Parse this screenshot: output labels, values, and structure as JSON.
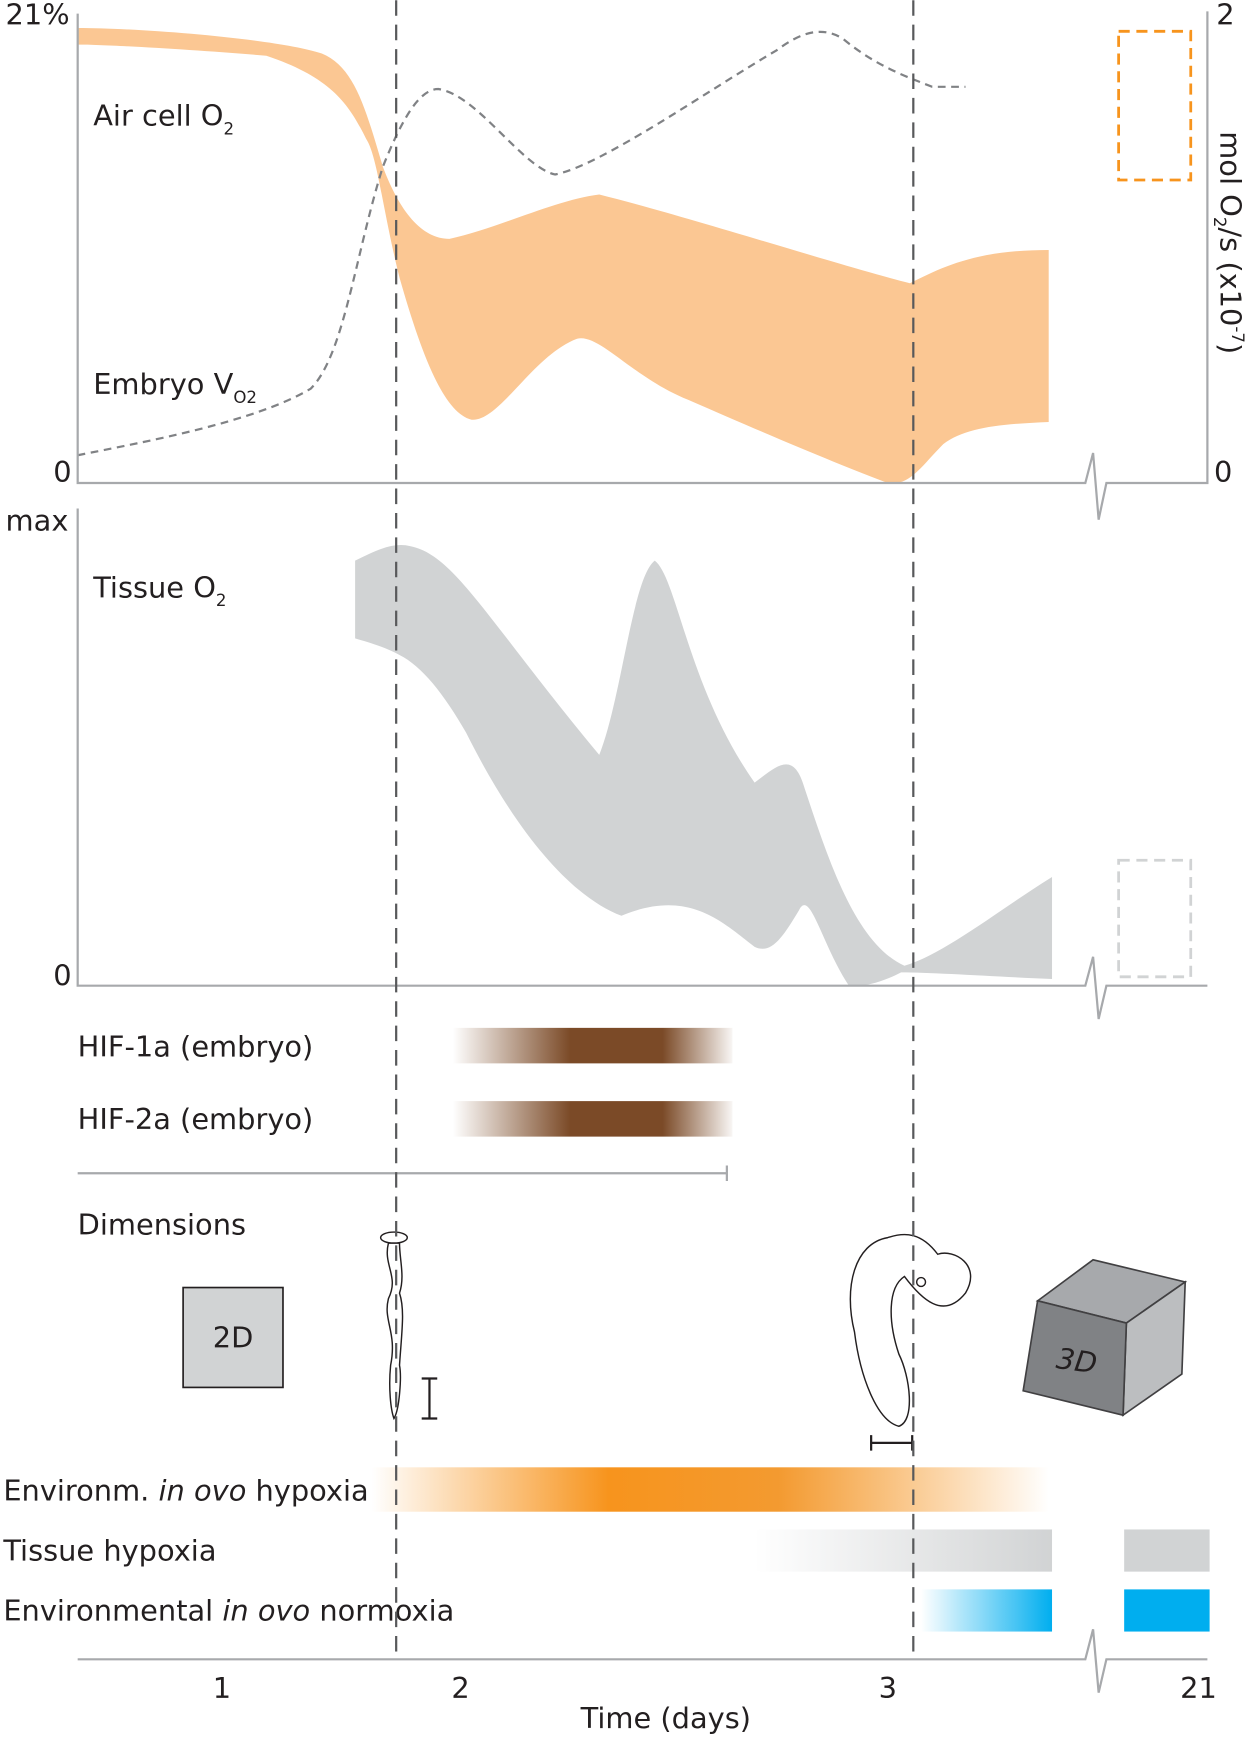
{
  "top_panel": {
    "y_left_ticks": [
      "21%",
      "0"
    ],
    "y_right_ticks": [
      "2",
      "0"
    ],
    "y_right_label": {
      "a": "mol O",
      "b": "2",
      "c": "/s (x10",
      "d": "-7",
      "e": ")"
    },
    "air_cell_label": {
      "text": "Air cell O",
      "sub": "2"
    },
    "embryo_label": {
      "text": "Embryo V",
      "sub": "O2"
    }
  },
  "middle_panel": {
    "y_ticks": [
      "max",
      "0"
    ],
    "tissue_label": {
      "text": "Tissue O",
      "sub": "2"
    }
  },
  "hif_labels": [
    "HIF-1a (embryo)",
    "HIF-2a (embryo)"
  ],
  "dimensions": {
    "title": "Dimensions",
    "box_2d": "2D",
    "box_3d": "3D"
  },
  "bars": [
    {
      "pre": "Environm. ",
      "italic": "in ovo",
      "post": " hypoxia"
    },
    {
      "pre": "Tissue hypoxia"
    },
    {
      "pre": "Environmental ",
      "italic": "in ovo",
      "post": " normoxia"
    }
  ],
  "x_axis": {
    "ticks": [
      "1",
      "2",
      "3",
      "21"
    ],
    "label": "Time (days)"
  }
}
